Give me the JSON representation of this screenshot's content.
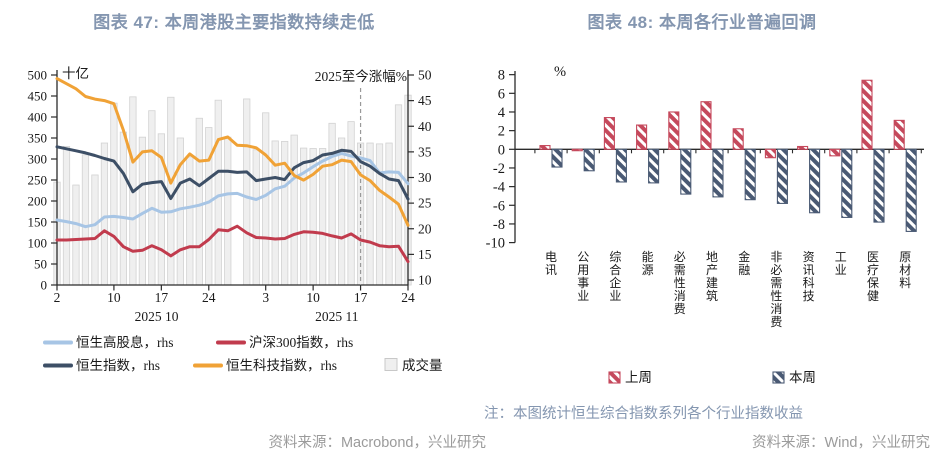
{
  "page": {
    "background": "#FFFFFF"
  },
  "theme": {
    "title_color": "#8496B0",
    "note_color": "#8496B0",
    "source_color": "#9B9B9B",
    "axis_text_color": "#1A1A1A",
    "axis_line_color": "#2B2B2B",
    "dashed_line_color": "#999999"
  },
  "chart_data": [
    {
      "type": "line",
      "title": "图表 47: 本周港股主要指数持续走低",
      "y_left": {
        "unit_label": "十亿",
        "ticks": [
          0,
          50,
          100,
          150,
          200,
          250,
          300,
          350,
          400,
          450,
          500
        ],
        "min": 0,
        "max": 500
      },
      "y_right": {
        "ticks": [
          10,
          15,
          20,
          25,
          30,
          35,
          40,
          45,
          50
        ],
        "min": 10,
        "max": 50
      },
      "n_points": 38,
      "x_ticks": [
        {
          "label": "2",
          "index": 0
        },
        {
          "label": "10",
          "index": 6
        },
        {
          "label": "17",
          "index": 11
        },
        {
          "label": "24",
          "index": 16
        },
        {
          "label": "3",
          "index": 22
        },
        {
          "label": "10",
          "index": 27
        },
        {
          "label": "17",
          "index": 32
        },
        {
          "label": "24",
          "index": 37
        }
      ],
      "x_month_labels": [
        {
          "label": "2025 10",
          "start": 0,
          "end": 21
        },
        {
          "label": "2025 11",
          "start": 22,
          "end": 37
        }
      ],
      "annotation": {
        "text": "2025至今涨幅%",
        "at_index": 32
      },
      "series": [
        {
          "name": "恒生高股息，rhs",
          "axis": "right",
          "color": "#A7C5E5",
          "values": [
            21.7,
            21.4,
            21.0,
            20.4,
            20.8,
            22.3,
            22.4,
            22.2,
            21.9,
            23.0,
            24.0,
            23.2,
            23.3,
            23.9,
            24.2,
            24.6,
            25.2,
            26.4,
            26.8,
            26.9,
            26.2,
            25.7,
            26.5,
            27.8,
            28.3,
            29.9,
            30.9,
            32.1,
            33.2,
            34.1,
            34.7,
            34.2,
            33.8,
            33.3,
            30.9,
            31.1,
            31.0,
            28.8
          ]
        },
        {
          "name": "恒生指数，rhs",
          "axis": "right",
          "color": "#3D4F66",
          "values": [
            36.0,
            35.6,
            35.2,
            34.8,
            34.3,
            33.7,
            33.2,
            30.8,
            27.2,
            28.7,
            29.0,
            29.2,
            25.9,
            28.9,
            29.7,
            28.4,
            29.8,
            31.2,
            31.2,
            31.0,
            31.1,
            29.4,
            29.7,
            30.0,
            29.6,
            31.9,
            32.9,
            33.3,
            34.4,
            34.7,
            35.3,
            35.1,
            33.1,
            32.2,
            30.8,
            29.7,
            29.4,
            25.8
          ]
        },
        {
          "name": "沪深300指数，rhs",
          "axis": "right",
          "color": "#C13B4D",
          "values": [
            17.8,
            17.8,
            17.9,
            18.0,
            18.1,
            19.6,
            18.5,
            16.5,
            15.6,
            15.8,
            16.7,
            15.9,
            14.7,
            15.9,
            16.5,
            16.5,
            17.9,
            19.8,
            19.6,
            20.5,
            19.2,
            18.3,
            18.2,
            18.0,
            18.1,
            18.9,
            19.4,
            19.3,
            19.1,
            18.6,
            18.2,
            19.0,
            17.8,
            17.4,
            16.7,
            16.5,
            16.6,
            13.6
          ]
        },
        {
          "name": "恒生科技指数，rhs",
          "axis": "right",
          "color": "#F0A236",
          "values": [
            49.3,
            48.3,
            47.3,
            45.8,
            45.3,
            45.0,
            44.4,
            39.2,
            33.0,
            35.0,
            35.2,
            33.9,
            28.9,
            32.5,
            34.6,
            33.2,
            33.4,
            37.4,
            37.9,
            36.3,
            36.2,
            35.8,
            34.4,
            32.4,
            32.8,
            30.4,
            29.5,
            30.6,
            32.2,
            32.5,
            33.4,
            33.1,
            30.5,
            29.4,
            27.5,
            26.2,
            24.8,
            20.7
          ]
        }
      ],
      "volume": {
        "name": "成交量",
        "axis": "left",
        "fill": "#EFEFEF",
        "stroke": "#D2D2D2",
        "values": [
          245,
          330,
          238,
          310,
          262,
          338,
          433,
          364,
          448,
          352,
          415,
          360,
          447,
          350,
          305,
          397,
          375,
          440,
          352,
          0,
          443,
          322,
          410,
          343,
          342,
          357,
          326,
          325,
          325,
          385,
          350,
          389,
          338,
          338,
          336,
          338,
          429,
          452
        ]
      },
      "source": "资料来源：Macrobond，兴业研究"
    },
    {
      "type": "bar",
      "title": "图表 48: 本周各行业普遍回调",
      "unit_label": "%",
      "categories": [
        "电讯",
        "公用事业",
        "综合企业",
        "能源",
        "必需性消费",
        "地产建筑",
        "金融",
        "非必需性消费",
        "资讯科技",
        "工业",
        "医疗保健",
        "原材料"
      ],
      "series": [
        {
          "name": "上周",
          "color": "#C5495C",
          "values": [
            0.4,
            -0.15,
            3.4,
            2.6,
            4.0,
            5.1,
            2.2,
            -0.9,
            0.3,
            -0.7,
            7.4,
            3.1
          ]
        },
        {
          "name": "本周",
          "color": "#4A5A74",
          "values": [
            -1.9,
            -2.3,
            -3.5,
            -3.6,
            -4.8,
            -5.1,
            -5.4,
            -5.8,
            -6.8,
            -7.3,
            -7.8,
            -8.8
          ]
        }
      ],
      "ylim": [
        -10,
        8
      ],
      "yticks": [
        8,
        6,
        4,
        2,
        0,
        -2,
        -4,
        -6,
        -8,
        -10
      ],
      "grid": false,
      "legend_position": "bottom",
      "note": "注：本图统计恒生综合指数系列各个行业指数收益",
      "source": "资料来源：Wind，兴业研究"
    }
  ]
}
